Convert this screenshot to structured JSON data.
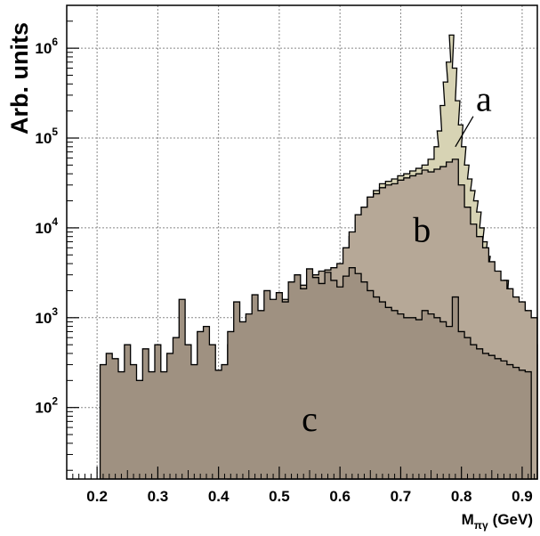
{
  "chart_data": {
    "type": "area",
    "ylabel": "Arb. units",
    "xlabel_main": "M",
    "xlabel_sub": "πγ",
    "xlabel_unit": "(GeV)",
    "xlim": [
      0.15,
      0.925
    ],
    "ylim": [
      16,
      3000000
    ],
    "y_scale": "log",
    "grid": true,
    "x_ticks": [
      {
        "value": 0.2,
        "label": "0.2"
      },
      {
        "value": 0.3,
        "label": "0.3"
      },
      {
        "value": 0.4,
        "label": "0.4"
      },
      {
        "value": 0.5,
        "label": "0.5"
      },
      {
        "value": 0.6,
        "label": "0.6"
      },
      {
        "value": 0.7,
        "label": "0.7"
      },
      {
        "value": 0.8,
        "label": "0.8"
      },
      {
        "value": 0.9,
        "label": "0.9"
      }
    ],
    "y_ticks": [
      {
        "value": 100,
        "base": "10",
        "exp": "2"
      },
      {
        "value": 1000,
        "base": "10",
        "exp": "3"
      },
      {
        "value": 10000,
        "base": "10",
        "exp": "4"
      },
      {
        "value": 100000,
        "base": "10",
        "exp": "5"
      },
      {
        "value": 1000000,
        "base": "10",
        "exp": "6"
      }
    ],
    "series": [
      {
        "label": "a",
        "color": "#d7d3b4",
        "label_pos": [
          0.837,
          200000
        ],
        "pointer": [
          0.79,
          80000
        ],
        "x": [
          0.62,
          0.63,
          0.64,
          0.65,
          0.66,
          0.67,
          0.68,
          0.69,
          0.7,
          0.71,
          0.72,
          0.73,
          0.74,
          0.75,
          0.76,
          0.765,
          0.77,
          0.775,
          0.78,
          0.785,
          0.79,
          0.795,
          0.8,
          0.805,
          0.81,
          0.815,
          0.82,
          0.825,
          0.83,
          0.835,
          0.84,
          0.845,
          0.85,
          0.855,
          0.86,
          0.865,
          0.87,
          0.875,
          0.88,
          0.885,
          0.89,
          0.895,
          0.9,
          0.905,
          0.91,
          0.915,
          0.92
        ],
        "y": [
          8000,
          12000,
          17000,
          22000,
          26000,
          31000,
          33000,
          35000,
          38000,
          40000,
          43000,
          46000,
          50000,
          58000,
          80000,
          120000,
          230000,
          420000,
          700000,
          1400000,
          600000,
          260000,
          140000,
          80000,
          50000,
          35000,
          26000,
          20000,
          15000,
          10000,
          7000,
          4800,
          3700,
          2700,
          2300,
          2000,
          1700,
          2600,
          1500,
          1100,
          1300,
          900,
          800,
          1200,
          700,
          900,
          500
        ]
      },
      {
        "label": "b",
        "color": "#b6a897",
        "label_pos": [
          0.735,
          7000
        ],
        "x": [
          0.42,
          0.43,
          0.44,
          0.45,
          0.46,
          0.47,
          0.48,
          0.49,
          0.5,
          0.51,
          0.52,
          0.53,
          0.54,
          0.55,
          0.56,
          0.57,
          0.58,
          0.59,
          0.6,
          0.61,
          0.62,
          0.63,
          0.64,
          0.65,
          0.66,
          0.67,
          0.68,
          0.69,
          0.7,
          0.71,
          0.72,
          0.73,
          0.74,
          0.75,
          0.76,
          0.77,
          0.78,
          0.79,
          0.8,
          0.81,
          0.82,
          0.83,
          0.84,
          0.85,
          0.86,
          0.87,
          0.88,
          0.89,
          0.9,
          0.91,
          0.92
        ],
        "y": [
          500,
          600,
          700,
          800,
          900,
          1000,
          1200,
          1300,
          1500,
          1600,
          1800,
          1900,
          2300,
          2700,
          3000,
          3300,
          3400,
          3600,
          4000,
          6000,
          9000,
          14000,
          17000,
          22000,
          24000,
          28000,
          30000,
          31000,
          34000,
          36000,
          38000,
          40000,
          44000,
          42000,
          45000,
          48000,
          54000,
          58000,
          30000,
          17000,
          11000,
          8000,
          6000,
          4200,
          3300,
          2600,
          2100,
          1700,
          1500,
          1200,
          1000
        ]
      },
      {
        "label": "c",
        "color": "#9f9181",
        "label_pos": [
          0.55,
          55
        ],
        "x": [
          0.21,
          0.22,
          0.23,
          0.24,
          0.25,
          0.26,
          0.27,
          0.28,
          0.29,
          0.3,
          0.31,
          0.32,
          0.33,
          0.34,
          0.35,
          0.36,
          0.37,
          0.38,
          0.39,
          0.4,
          0.41,
          0.42,
          0.43,
          0.44,
          0.45,
          0.46,
          0.47,
          0.48,
          0.49,
          0.5,
          0.51,
          0.52,
          0.53,
          0.54,
          0.55,
          0.56,
          0.57,
          0.58,
          0.59,
          0.6,
          0.61,
          0.62,
          0.63,
          0.64,
          0.65,
          0.66,
          0.67,
          0.68,
          0.69,
          0.7,
          0.71,
          0.72,
          0.73,
          0.74,
          0.75,
          0.76,
          0.77,
          0.78,
          0.79,
          0.8,
          0.81,
          0.82,
          0.83,
          0.84,
          0.85,
          0.86,
          0.87,
          0.88,
          0.89,
          0.9,
          0.91
        ],
        "y": [
          300,
          400,
          350,
          250,
          500,
          300,
          200,
          450,
          250,
          500,
          250,
          400,
          600,
          1600,
          500,
          300,
          700,
          800,
          500,
          260,
          300,
          700,
          1500,
          900,
          1100,
          1800,
          1200,
          2000,
          1600,
          1900,
          1500,
          2500,
          3000,
          2100,
          3500,
          2800,
          2400,
          3200,
          2600,
          2200,
          2900,
          3600,
          3100,
          2500,
          2000,
          1700,
          1500,
          1300,
          1200,
          1100,
          1000,
          1000,
          950,
          1200,
          1100,
          1000,
          900,
          800,
          1700,
          700,
          600,
          500,
          450,
          400,
          380,
          350,
          330,
          300,
          280,
          260,
          250
        ]
      }
    ]
  }
}
